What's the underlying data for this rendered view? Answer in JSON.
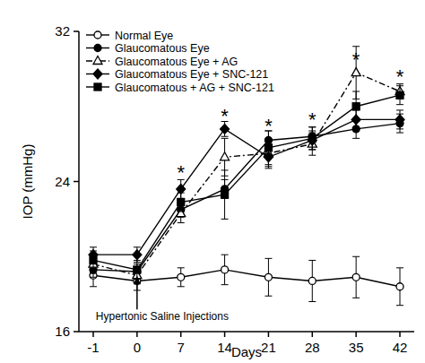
{
  "chart_data": {
    "type": "line",
    "x_label": "Days",
    "y_label": "IOP (mmHg)",
    "categories": [
      "-1",
      "0",
      "7",
      "14",
      "21",
      "28",
      "35",
      "42"
    ],
    "ylim": [
      16,
      32
    ],
    "yticks": [
      16,
      24,
      32
    ],
    "legend": "upper-left",
    "grid": false,
    "series": [
      {
        "name": "Normal Eye",
        "color": "#000000",
        "marker": "circle-open",
        "line_style": "solid",
        "values": [
          19.0,
          18.7,
          18.9,
          19.3,
          18.9,
          18.7,
          18.9,
          18.4
        ],
        "errors": [
          0.6,
          0.5,
          0.5,
          0.8,
          1.0,
          1.1,
          1.1,
          1.0
        ]
      },
      {
        "name": "Glaucomatous Eye",
        "color": "#000000",
        "marker": "circle",
        "line_style": "solid",
        "values": [
          19.3,
          19.2,
          22.5,
          23.6,
          26.2,
          26.4,
          26.8,
          27.1
        ],
        "errors": [
          0.4,
          0.4,
          0.4,
          0.5,
          0.5,
          0.5,
          0.5,
          0.5
        ]
      },
      {
        "name": "Glaucomatous Eye + AG",
        "color": "#000000",
        "marker": "triangle-open",
        "line_style": "dashdot",
        "values": [
          19.6,
          19.0,
          22.3,
          25.3,
          25.5,
          26.0,
          29.8,
          28.8
        ],
        "errors": [
          0.5,
          0.4,
          0.5,
          1.0,
          0.8,
          0.6,
          1.4,
          0.4
        ]
      },
      {
        "name": "Glaucomatous Eye + SNC-121",
        "color": "#000000",
        "marker": "diamond",
        "line_style": "solid",
        "values": [
          20.1,
          20.1,
          23.6,
          26.8,
          25.3,
          26.2,
          27.3,
          27.3
        ],
        "errors": [
          0.4,
          0.4,
          0.5,
          0.4,
          0.5,
          0.5,
          0.5,
          0.5
        ]
      },
      {
        "name": "Glaucomatous + AG + SNC-121",
        "color": "#000000",
        "marker": "square",
        "line_style": "solid",
        "values": [
          19.8,
          19.3,
          22.9,
          23.3,
          25.8,
          26.3,
          28.0,
          28.6
        ],
        "errors": [
          0.5,
          0.5,
          0.5,
          1.3,
          0.9,
          0.6,
          0.8,
          0.5
        ]
      }
    ],
    "annotations": [
      {
        "x": "0",
        "y": 16.8,
        "text": "Hypertonic Saline Injections"
      },
      {
        "x": "7",
        "y": 24.6,
        "text": "*"
      },
      {
        "x": "14",
        "y": 27.6,
        "text": "*"
      },
      {
        "x": "21",
        "y": 27.1,
        "text": "*"
      },
      {
        "x": "28",
        "y": 27.4,
        "text": "*"
      },
      {
        "x": "35",
        "y": 30.6,
        "text": "*"
      },
      {
        "x": "42",
        "y": 29.7,
        "text": "*"
      }
    ]
  }
}
